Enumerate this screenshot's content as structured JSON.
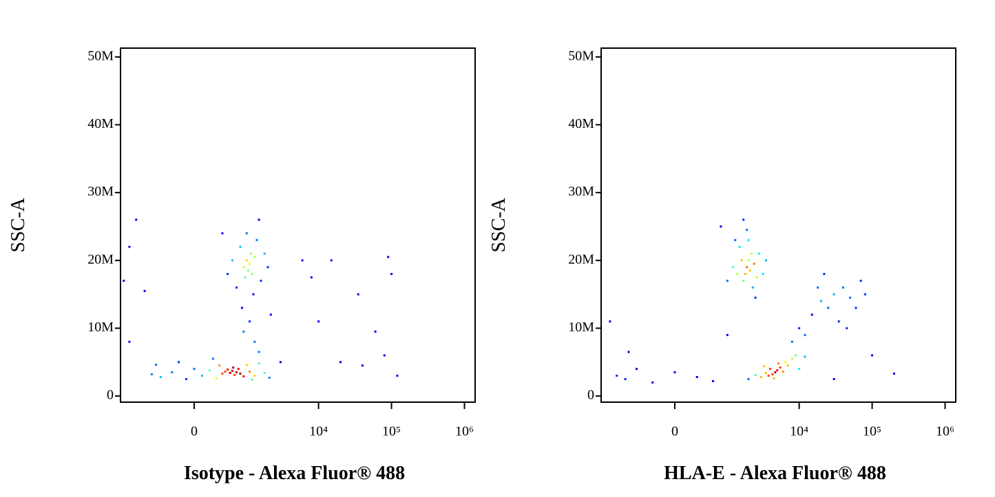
{
  "chart_data": [
    {
      "type": "scatter",
      "xlabel": "Isotype - Alexa Fluor® 488",
      "ylabel": "SSC-A",
      "xscale": "biexponential",
      "colormap": "jet",
      "xlim": [
        -2000,
        1400000
      ],
      "ylim": [
        -900000,
        51300000
      ],
      "xticks": [
        0,
        {
          "value": 10000,
          "label": "10⁴"
        },
        {
          "value": 100000,
          "label": "10⁵"
        },
        {
          "value": 1000000,
          "label": "10⁶"
        }
      ],
      "yticks": [
        0,
        {
          "value": 10000000,
          "label": "10M"
        },
        {
          "value": 20000000,
          "label": "20M"
        },
        {
          "value": 30000000,
          "label": "30M"
        },
        {
          "value": 40000000,
          "label": "40M"
        },
        {
          "value": 50000000,
          "label": "50M"
        }
      ],
      "x": [
        -700,
        -500,
        -300,
        -100,
        0,
        100,
        200,
        300,
        350,
        400,
        450,
        500,
        550,
        600,
        620,
        650,
        700,
        750,
        800,
        900,
        1000,
        1100,
        1300,
        1500,
        1800,
        2100,
        -200,
        250,
        -600,
        1200,
        900,
        1000,
        1050,
        1100,
        1150,
        950,
        1200,
        1300,
        800,
        700,
        1400,
        1600,
        600,
        1000,
        1250,
        1800,
        2000,
        500,
        400,
        1500,
        850,
        1100,
        1300,
        1500,
        900,
        2200,
        -1800,
        -1500,
        -1200,
        -900,
        6000,
        8000,
        15000,
        35000,
        90000,
        100000,
        60000,
        80000,
        120000,
        40000,
        20000,
        10000,
        -1500,
        3000
      ],
      "values": [
        3200000,
        2800000,
        3500000,
        2500000,
        4000000,
        3000000,
        3800000,
        2600000,
        4500000,
        3300000,
        3600000,
        3900000,
        3400000,
        3700000,
        4200000,
        3100000,
        3500000,
        4000000,
        3300000,
        2900000,
        4600000,
        3600000,
        3000000,
        4800000,
        3400000,
        2700000,
        5000000,
        5500000,
        4600000,
        2400000,
        19000000,
        20000000,
        18500000,
        19500000,
        21000000,
        17500000,
        18000000,
        20500000,
        22000000,
        16000000,
        23000000,
        17000000,
        20000000,
        24000000,
        15000000,
        21000000,
        19000000,
        18000000,
        24000000,
        26000000,
        13000000,
        11000000,
        8000000,
        6500000,
        9500000,
        12000000,
        17000000,
        22000000,
        26000000,
        15500000,
        20000000,
        17500000,
        20000000,
        15000000,
        20500000,
        18000000,
        9500000,
        6000000,
        3000000,
        4500000,
        5000000,
        11000000,
        8000000,
        5000000
      ]
    },
    {
      "type": "scatter",
      "xlabel": "HLA-E - Alexa Fluor® 488",
      "ylabel": "SSC-A",
      "xscale": "biexponential",
      "colormap": "jet",
      "xlim": [
        -2000,
        1400000
      ],
      "ylim": [
        -900000,
        51300000
      ],
      "xticks": [
        0,
        {
          "value": 10000,
          "label": "10⁴"
        },
        {
          "value": 100000,
          "label": "10⁵"
        },
        {
          "value": 1000000,
          "label": "10⁶"
        }
      ],
      "yticks": [
        0,
        {
          "value": 10000000,
          "label": "10M"
        },
        {
          "value": 20000000,
          "label": "20M"
        },
        {
          "value": 30000000,
          "label": "30M"
        },
        {
          "value": 40000000,
          "label": "40M"
        },
        {
          "value": 50000000,
          "label": "50M"
        }
      ],
      "x": [
        1900,
        2000,
        1800,
        2100,
        2200,
        1700,
        1600,
        2400,
        2600,
        1500,
        2000,
        2300,
        1400,
        1900,
        2800,
        1200,
        1000,
        3200,
        2500,
        1700,
        1300,
        3500,
        800,
        4700,
        4300,
        5000,
        3800,
        5500,
        4000,
        6000,
        3500,
        6500,
        3000,
        7000,
        4500,
        8000,
        2500,
        5200,
        9000,
        2000,
        10000,
        3300,
        12000,
        15000,
        20000,
        25000,
        30000,
        10000,
        12000,
        40000,
        50000,
        60000,
        70000,
        8000,
        35000,
        22000,
        45000,
        80000,
        18000,
        -1200,
        -900,
        -600,
        -300,
        0,
        300,
        600,
        -1500,
        -800,
        1000,
        200000,
        30000,
        100000
      ],
      "values": [
        19000000,
        20000000,
        18000000,
        18500000,
        21000000,
        17000000,
        20000000,
        19500000,
        17500000,
        22000000,
        23000000,
        16000000,
        18000000,
        24500000,
        21000000,
        19000000,
        17000000,
        18000000,
        14500000,
        26000000,
        23000000,
        20000000,
        25000000,
        3500000,
        3200000,
        3800000,
        3000000,
        4200000,
        4000000,
        3600000,
        3400000,
        5000000,
        2800000,
        4500000,
        2600000,
        5500000,
        3100000,
        4800000,
        6000000,
        2500000,
        4000000,
        4400000,
        5800000,
        12000000,
        14000000,
        13000000,
        15000000,
        10000000,
        9000000,
        16000000,
        14500000,
        13000000,
        17000000,
        8000000,
        11000000,
        18000000,
        10000000,
        15000000,
        16000000,
        3000000,
        2500000,
        4000000,
        2000000,
        3500000,
        2800000,
        2200000,
        11000000,
        6500000,
        9000000,
        3300000,
        2500000,
        6000000
      ]
    }
  ]
}
